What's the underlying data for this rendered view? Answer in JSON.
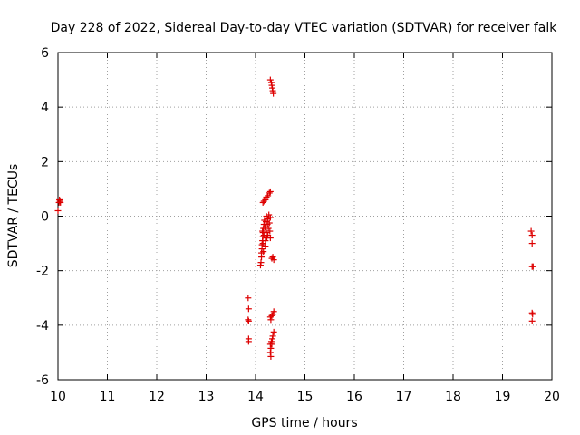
{
  "chart_data": {
    "type": "scatter",
    "title": "Day 228 of 2022, Sidereal Day-to-day VTEC variation (SDTVAR) for receiver falk",
    "xlabel": "GPS time / hours",
    "ylabel": "SDTVAR / TECUs",
    "xlim": [
      10,
      20
    ],
    "ylim": [
      -6,
      6
    ],
    "xticks": [
      10,
      11,
      12,
      13,
      14,
      15,
      16,
      17,
      18,
      19,
      20
    ],
    "yticks": [
      -6,
      -4,
      -2,
      0,
      2,
      4,
      6
    ],
    "grid": true,
    "marker": "plus",
    "color": "#dd0000",
    "series": [
      {
        "name": "SDTVAR",
        "points": [
          [
            10.0,
            0.2
          ],
          [
            10.02,
            0.5
          ],
          [
            10.03,
            0.6
          ],
          [
            10.04,
            0.55
          ],
          [
            10.05,
            0.5
          ],
          [
            13.85,
            -3.0
          ],
          [
            13.86,
            -3.4
          ],
          [
            13.85,
            -3.8
          ],
          [
            13.86,
            -3.85
          ],
          [
            13.86,
            -4.5
          ],
          [
            13.86,
            -4.6
          ],
          [
            14.1,
            -1.8
          ],
          [
            14.11,
            -1.7
          ],
          [
            14.12,
            -1.5
          ],
          [
            14.12,
            -1.35
          ],
          [
            14.13,
            -1.2
          ],
          [
            14.13,
            -1.05
          ],
          [
            14.14,
            -0.9
          ],
          [
            14.15,
            -0.75
          ],
          [
            14.15,
            -0.6
          ],
          [
            14.16,
            -0.45
          ],
          [
            14.17,
            -0.3
          ],
          [
            14.14,
            -0.55
          ],
          [
            14.15,
            -1.0
          ],
          [
            14.16,
            -1.3
          ],
          [
            14.17,
            -0.7
          ],
          [
            14.18,
            -0.15
          ],
          [
            14.19,
            -0.4
          ],
          [
            14.2,
            -0.9
          ],
          [
            14.2,
            -1.1
          ],
          [
            14.21,
            -0.2
          ],
          [
            14.22,
            -0.6
          ],
          [
            14.22,
            0.0
          ],
          [
            14.23,
            -0.8
          ],
          [
            14.24,
            -0.3
          ],
          [
            14.25,
            -0.1
          ],
          [
            14.25,
            -0.7
          ],
          [
            14.26,
            -0.45
          ],
          [
            14.27,
            0.05
          ],
          [
            14.28,
            -0.25
          ],
          [
            14.29,
            -0.55
          ],
          [
            14.3,
            -0.05
          ],
          [
            14.3,
            -0.8
          ],
          [
            14.15,
            0.5
          ],
          [
            14.17,
            0.55
          ],
          [
            14.2,
            0.6
          ],
          [
            14.22,
            0.7
          ],
          [
            14.25,
            0.75
          ],
          [
            14.28,
            0.85
          ],
          [
            14.3,
            0.9
          ],
          [
            14.33,
            -1.55
          ],
          [
            14.35,
            -1.5
          ],
          [
            14.37,
            -1.6
          ],
          [
            14.3,
            5.0
          ],
          [
            14.32,
            4.9
          ],
          [
            14.33,
            4.8
          ],
          [
            14.34,
            4.7
          ],
          [
            14.35,
            4.6
          ],
          [
            14.36,
            4.5
          ],
          [
            14.3,
            -3.7
          ],
          [
            14.31,
            -3.8
          ],
          [
            14.33,
            -3.65
          ],
          [
            14.35,
            -3.6
          ],
          [
            14.37,
            -3.5
          ],
          [
            14.3,
            -4.7
          ],
          [
            14.31,
            -4.85
          ],
          [
            14.3,
            -5.0
          ],
          [
            14.31,
            -5.15
          ],
          [
            14.32,
            -4.6
          ],
          [
            14.33,
            -4.7
          ],
          [
            14.34,
            -4.5
          ],
          [
            14.35,
            -4.4
          ],
          [
            14.37,
            -4.25
          ],
          [
            19.58,
            -0.55
          ],
          [
            19.6,
            -0.7
          ],
          [
            19.6,
            -1.0
          ],
          [
            19.6,
            -1.85
          ],
          [
            19.62,
            -1.85
          ],
          [
            19.6,
            -3.55
          ],
          [
            19.61,
            -3.6
          ],
          [
            19.6,
            -3.85
          ]
        ]
      }
    ]
  }
}
